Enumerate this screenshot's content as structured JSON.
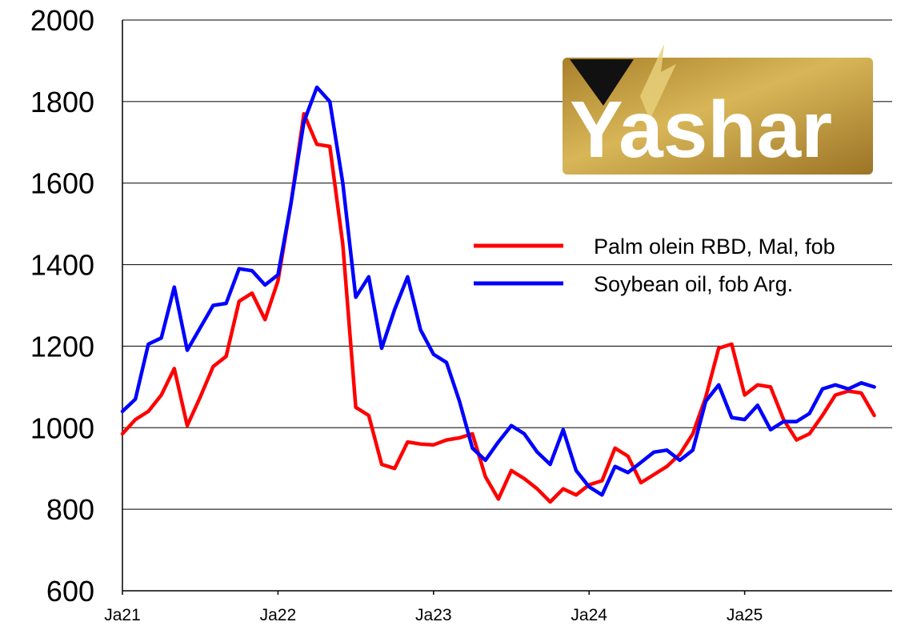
{
  "chart_data": {
    "type": "line",
    "x": [
      "2021-01",
      "2021-02",
      "2021-03",
      "2021-04",
      "2021-05",
      "2021-06",
      "2021-07",
      "2021-08",
      "2021-09",
      "2021-10",
      "2021-11",
      "2021-12",
      "2022-01",
      "2022-02",
      "2022-03",
      "2022-04",
      "2022-05",
      "2022-06",
      "2022-07",
      "2022-08",
      "2022-09",
      "2022-10",
      "2022-11",
      "2022-12",
      "2023-01",
      "2023-02",
      "2023-03",
      "2023-04",
      "2023-05",
      "2023-06",
      "2023-07",
      "2023-08",
      "2023-09",
      "2023-10",
      "2023-11",
      "2023-12",
      "2024-01",
      "2024-02",
      "2024-03",
      "2024-04",
      "2024-05",
      "2024-06",
      "2024-07",
      "2024-08",
      "2024-09",
      "2024-10",
      "2024-11",
      "2024-12",
      "2025-01",
      "2025-02",
      "2025-03",
      "2025-04",
      "2025-05",
      "2025-06",
      "2025-07",
      "2025-08",
      "2025-09",
      "2025-10",
      "2025-11",
      "2025-12"
    ],
    "xtick_labels": [
      "Ja21",
      "Ja22",
      "Ja23",
      "Ja24",
      "Ja25"
    ],
    "xtick_values": [
      "2021-01",
      "2022-01",
      "2023-01",
      "2024-01",
      "2025-01"
    ],
    "ylim": [
      600,
      2000
    ],
    "yticks": [
      600,
      800,
      1000,
      1200,
      1400,
      1600,
      1800,
      2000
    ],
    "grid": "horizontal",
    "legend_position": "right",
    "series": [
      {
        "name": "Palm olein RBD, Mal, fob",
        "color": "#ff0000",
        "values": [
          985,
          1020,
          1040,
          1080,
          1145,
          1005,
          1075,
          1150,
          1175,
          1310,
          1330,
          1265,
          1360,
          1550,
          1770,
          1695,
          1690,
          1450,
          1050,
          1030,
          910,
          900,
          965,
          960,
          958,
          970,
          975,
          985,
          880,
          825,
          895,
          875,
          850,
          818,
          850,
          835,
          860,
          870,
          950,
          930,
          865,
          885,
          905,
          935,
          985,
          1075,
          1195,
          1205,
          1080,
          1105,
          1100,
          1020,
          970,
          985,
          1030,
          1080,
          1090,
          1085,
          1030,
          null
        ]
      },
      {
        "name": "Soybean oil, fob Arg.",
        "color": "#0000ff",
        "values": [
          1040,
          1070,
          1205,
          1220,
          1345,
          1190,
          1245,
          1300,
          1305,
          1390,
          1385,
          1350,
          1375,
          1550,
          1750,
          1835,
          1800,
          1600,
          1320,
          1370,
          1195,
          1290,
          1370,
          1240,
          1180,
          1160,
          1065,
          950,
          920,
          965,
          1005,
          985,
          940,
          910,
          995,
          895,
          855,
          835,
          905,
          890,
          915,
          940,
          945,
          920,
          945,
          1065,
          1105,
          1025,
          1020,
          1055,
          995,
          1015,
          1015,
          1035,
          1095,
          1105,
          1095,
          1110,
          1100,
          null
        ]
      }
    ]
  },
  "logo": {
    "text": "Yashar",
    "bg_color": "#b8922f"
  }
}
